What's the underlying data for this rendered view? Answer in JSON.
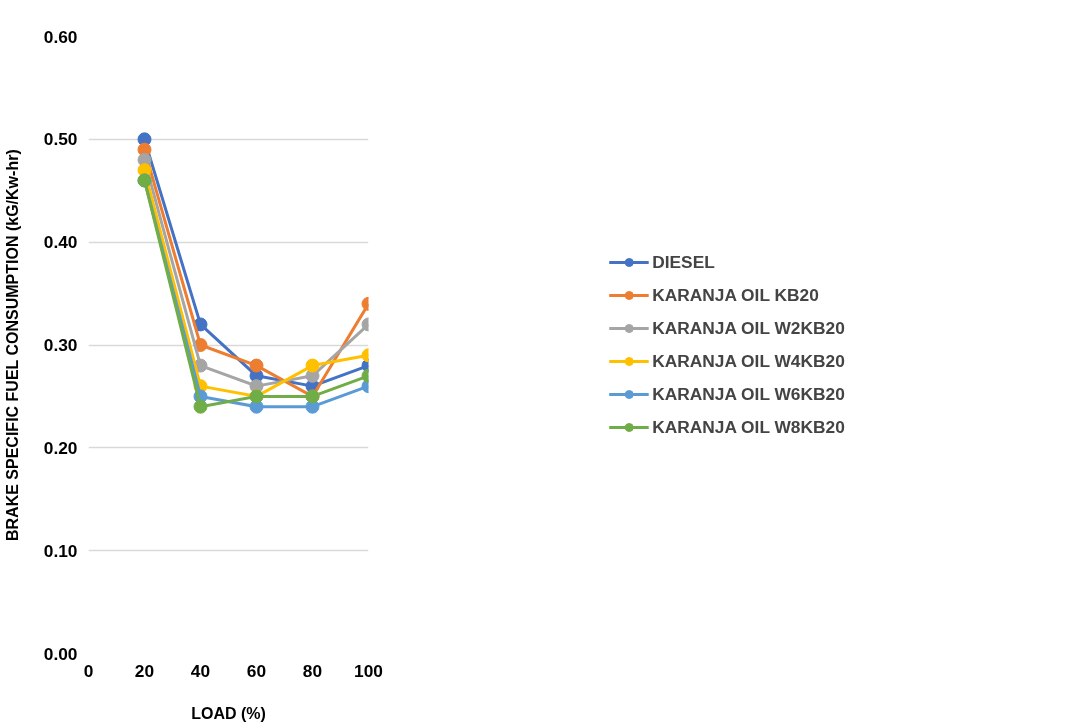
{
  "chart_data": {
    "type": "line",
    "xlabel": "LOAD (%)",
    "ylabel": "BRAKE SPECIFIC FUEL CONSUMPTION (kG/Kw-hr)",
    "x": [
      20,
      40,
      60,
      80,
      100
    ],
    "xlim": [
      0,
      100
    ],
    "xticks": [
      0,
      20,
      40,
      60,
      80,
      100
    ],
    "ylim": [
      0,
      0.6
    ],
    "yticks": [
      {
        "value": 0,
        "label": "0.00"
      },
      {
        "value": 0.1,
        "label": "0.10"
      },
      {
        "value": 0.2,
        "label": "0.20"
      },
      {
        "value": 0.3,
        "label": "0.30"
      },
      {
        "value": 0.4,
        "label": "0.40"
      },
      {
        "value": 0.5,
        "label": "0.50"
      },
      {
        "value": 0.6,
        "label": "0.60"
      }
    ],
    "grid": "y",
    "legend": "right",
    "marker": "circle",
    "line_style": "solid",
    "series": [
      {
        "name": "DIESEL",
        "color": "#4472c4",
        "values": [
          0.5,
          0.32,
          0.27,
          0.26,
          0.28
        ]
      },
      {
        "name": "KARANJA OIL KB20",
        "color": "#ed7d31",
        "values": [
          0.49,
          0.3,
          0.28,
          0.25,
          0.34
        ]
      },
      {
        "name": "KARANJA OIL W2KB20",
        "color": "#a5a5a5",
        "values": [
          0.48,
          0.28,
          0.26,
          0.27,
          0.32
        ]
      },
      {
        "name": "KARANJA OIL W4KB20",
        "color": "#ffc000",
        "values": [
          0.47,
          0.26,
          0.25,
          0.28,
          0.29
        ]
      },
      {
        "name": "KARANJA OIL W6KB20",
        "color": "#5b9bd5",
        "values": [
          0.46,
          0.25,
          0.24,
          0.24,
          0.26
        ]
      },
      {
        "name": "KARANJA OIL W8KB20",
        "color": "#70ad47",
        "values": [
          0.46,
          0.24,
          0.25,
          0.25,
          0.27
        ]
      }
    ]
  }
}
